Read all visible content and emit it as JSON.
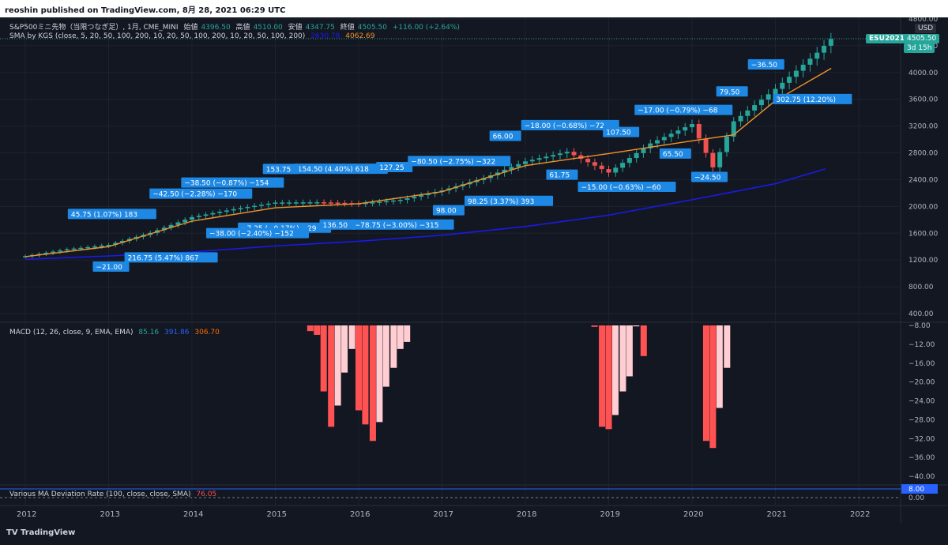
{
  "header": {
    "publisher": "reoshin published on TradingView.com, 8月 28, 2021 06:29 UTC"
  },
  "symbol": {
    "name": "S&P500ミニ先物（当限つなぎ足）, 1月, CME_MINI",
    "open_label": "始値",
    "open": "4396.50",
    "high_label": "高値",
    "high": "4510.00",
    "low_label": "安値",
    "low": "4347.75",
    "close_label": "終値",
    "close": "4505.50",
    "change": "+116.00 (+2.64%)"
  },
  "sma": {
    "label": "SMA by KGS (close, 5, 20, 50, 100, 200, 10, 20, 50, 100, 200, 10, 20, 50, 100, 200)",
    "v1": "2630.78",
    "v2": "4062.69"
  },
  "macd": {
    "label": "MACD (12, 26, close, 9, EMA, EMA)",
    "v1": "85.16",
    "v2": "391.86",
    "v3": "306.70"
  },
  "deviation": {
    "label": "Various MA Deviation Rate (100, close, close, SMA)",
    "value": "76.05"
  },
  "price_tag": {
    "symbol": "ESU2021",
    "value": "4505.50",
    "countdown": "3d 15h"
  },
  "currency": "USD",
  "footer": {
    "logo": "TradingView"
  },
  "colors": {
    "up": "#26a69a",
    "down": "#ef5350",
    "sma_fast": "#f0932b",
    "sma_slow": "#1a1ae6",
    "label_bg": "#1e88e5",
    "hist_dark": "#ff5252",
    "hist_light": "#ffcdd2"
  },
  "chart_data": [
    {
      "type": "candlestick",
      "title": "S&P500ミニ先物（当限つなぎ足）, 1月, CME_MINI",
      "x_ticks": [
        "2012",
        "2013",
        "2014",
        "2015",
        "2016",
        "2017",
        "2018",
        "2019",
        "2020",
        "2021",
        "2022"
      ],
      "y_ticks": [
        400,
        800,
        1200,
        1600,
        2000,
        2400,
        2800,
        3200,
        3600,
        4000,
        4400,
        4800
      ],
      "ylim": [
        250,
        4820
      ],
      "year_close": [
        [
          2012,
          1257
        ],
        [
          2012.5,
          1360
        ],
        [
          2013,
          1426
        ],
        [
          2013.5,
          1606
        ],
        [
          2014,
          1841
        ],
        [
          2014.5,
          1960
        ],
        [
          2015,
          2058
        ],
        [
          2015.5,
          2063
        ],
        [
          2016,
          2043
        ],
        [
          2016.5,
          2098
        ],
        [
          2017,
          2239
        ],
        [
          2017.5,
          2423
        ],
        [
          2018,
          2673
        ],
        [
          2018.5,
          2816
        ],
        [
          2019,
          2506
        ],
        [
          2019.5,
          2941
        ],
        [
          2020,
          3231
        ],
        [
          2020.25,
          2584
        ],
        [
          2020.5,
          3271
        ],
        [
          2021,
          3756
        ],
        [
          2021.5,
          4297
        ],
        [
          2021.67,
          4505.5
        ]
      ],
      "sma_fast": [
        [
          2012,
          1250
        ],
        [
          2013,
          1400
        ],
        [
          2014,
          1780
        ],
        [
          2015,
          1980
        ],
        [
          2016,
          2040
        ],
        [
          2017,
          2220
        ],
        [
          2018,
          2610
        ],
        [
          2019,
          2790
        ],
        [
          2020,
          2980
        ],
        [
          2020.5,
          3070
        ],
        [
          2021,
          3580
        ],
        [
          2021.67,
          4062.69
        ]
      ],
      "sma_slow": [
        [
          2012,
          1210
        ],
        [
          2013,
          1260
        ],
        [
          2014,
          1320
        ],
        [
          2015,
          1410
        ],
        [
          2016,
          1480
        ],
        [
          2017,
          1570
        ],
        [
          2018,
          1700
        ],
        [
          2019,
          1870
        ],
        [
          2020,
          2100
        ],
        [
          2021,
          2340
        ],
        [
          2021.6,
          2560
        ]
      ],
      "annotations": [
        "45.75 (1.07%) 183",
        "216.75 (5.47%) 867",
        "−38.50 (−0.87%) −154",
        "−7.25 (−0.17%) −29",
        "154.50 (4.40%) 618",
        "−78.75 (−3.00%) −315",
        "−80.50 (−2.75%) −322",
        "98.25 (3.37%) 393",
        "−18.00 (−0.68%) −72",
        "−15.00 (−0.63%) −60",
        "−17.00 (−0.79%) −68",
        "−24.50",
        "−36.50",
        "−21.00",
        "−42.50 (−2.28%) −170",
        "−38.00 (−2.40%) −152",
        "153.75",
        "136.50",
        "127.25",
        "98.00",
        "66.00",
        "61.75",
        "107.50",
        "65.50",
        "79.50",
        "302.75 (12.20%)"
      ]
    },
    {
      "type": "bar",
      "title": "MACD (12, 26, close, 9, EMA, EMA)",
      "y_ticks": [
        -8,
        -12,
        -16,
        -20,
        -24,
        -28,
        -32,
        -36,
        -40
      ],
      "ylim": [
        -42,
        -7.8
      ],
      "histogram": [
        [
          2015.42,
          -9.2,
          "dark"
        ],
        [
          2015.5,
          -10,
          "dark"
        ],
        [
          2015.58,
          -22,
          "dark"
        ],
        [
          2015.67,
          -29.5,
          "dark"
        ],
        [
          2015.75,
          -25,
          "light"
        ],
        [
          2015.83,
          -18,
          "light"
        ],
        [
          2015.92,
          -13,
          "light"
        ],
        [
          2016,
          -26,
          "dark"
        ],
        [
          2016.08,
          -29,
          "dark"
        ],
        [
          2016.17,
          -32.5,
          "dark"
        ],
        [
          2016.25,
          -28.5,
          "light"
        ],
        [
          2016.33,
          -21,
          "light"
        ],
        [
          2016.42,
          -17,
          "light"
        ],
        [
          2016.5,
          -13,
          "light"
        ],
        [
          2016.58,
          -11.5,
          "light"
        ],
        [
          2018.83,
          -8.3,
          "dark"
        ],
        [
          2018.92,
          -29.5,
          "dark"
        ],
        [
          2019,
          -30,
          "dark"
        ],
        [
          2019.08,
          -27,
          "light"
        ],
        [
          2019.17,
          -22,
          "light"
        ],
        [
          2019.25,
          -18.8,
          "light"
        ],
        [
          2019.33,
          -8.2,
          "light"
        ],
        [
          2019.42,
          -14.5,
          "dark"
        ],
        [
          2020.17,
          -32.5,
          "dark"
        ],
        [
          2020.25,
          -34,
          "dark"
        ],
        [
          2020.33,
          -25.5,
          "light"
        ],
        [
          2020.42,
          -17,
          "light"
        ]
      ]
    },
    {
      "type": "line",
      "title": "Various MA Deviation Rate (100, close, close, SMA)",
      "y_ticks": [
        8.0,
        0.0
      ],
      "value": 76.05
    }
  ]
}
